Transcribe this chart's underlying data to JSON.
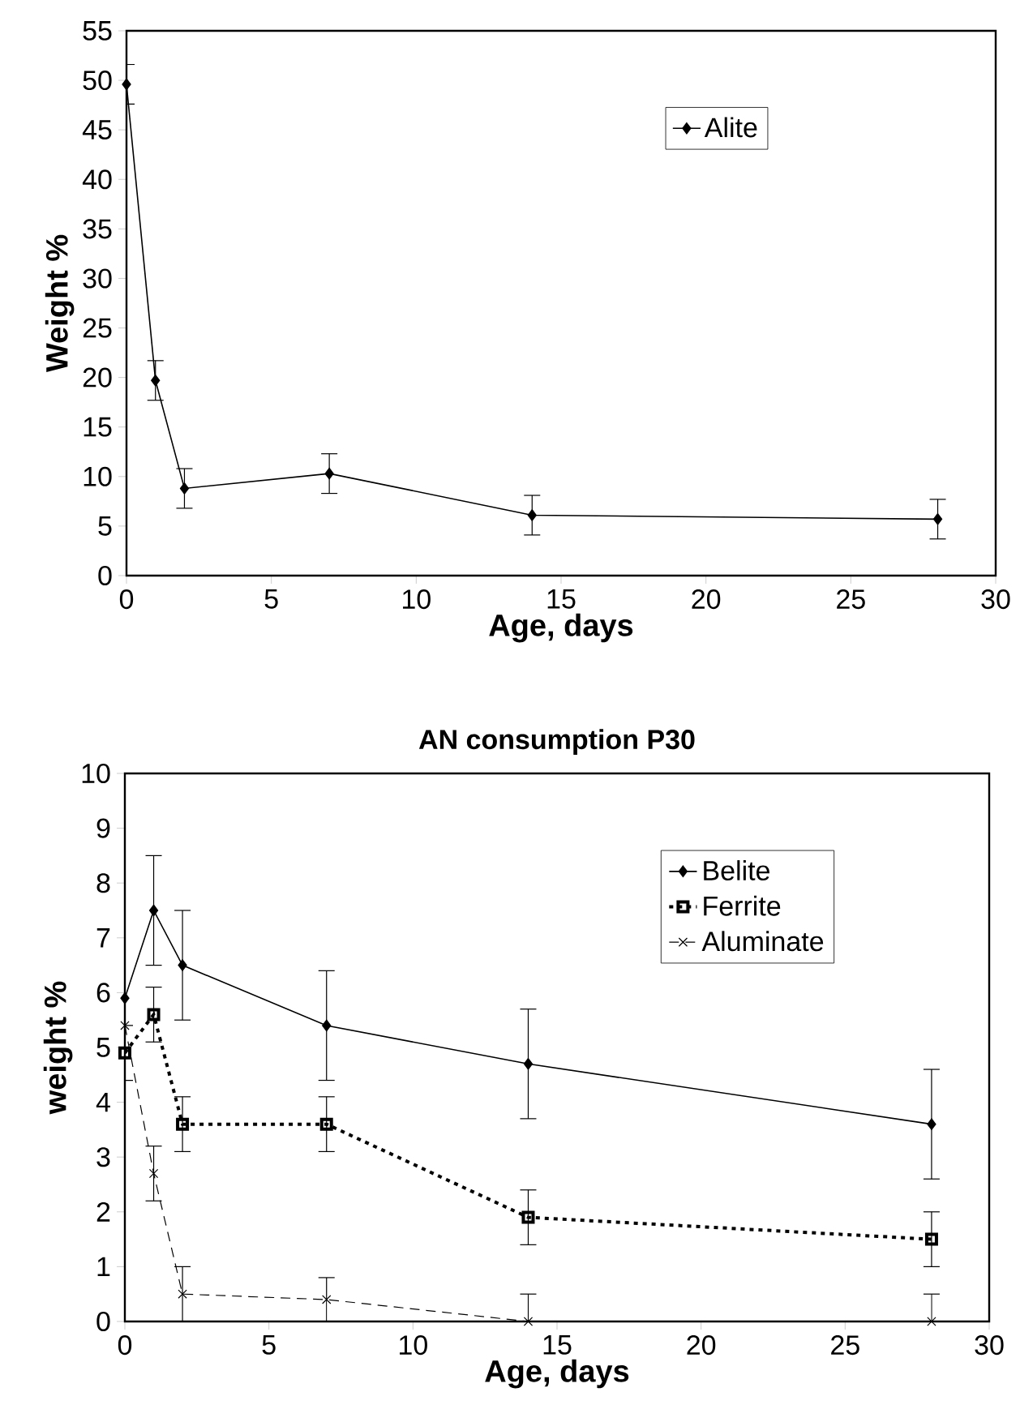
{
  "chart_data": [
    {
      "type": "line",
      "xlabel": "Age, days",
      "ylabel": "Weight %",
      "x": [
        0,
        1,
        2,
        7,
        14,
        28
      ],
      "xlim": [
        0,
        30
      ],
      "xticks": [
        0,
        5,
        10,
        15,
        20,
        25,
        30
      ],
      "ylim": [
        0,
        55
      ],
      "yticks": [
        0,
        5,
        10,
        15,
        20,
        25,
        30,
        35,
        40,
        45,
        50,
        55
      ],
      "legend": "top right",
      "grid": false,
      "series": [
        {
          "name": "Alite",
          "color": "#000000",
          "marker": "diamond",
          "line_style": "solid",
          "values": [
            49.6,
            19.7,
            8.8,
            10.3,
            6.1,
            5.7
          ],
          "errors": [
            2,
            2,
            2,
            2,
            2,
            2
          ]
        }
      ]
    },
    {
      "type": "line",
      "title": "AN consumption P30",
      "xlabel": "Age, days",
      "ylabel": "weight %",
      "x": [
        0,
        1,
        2,
        7,
        14,
        28
      ],
      "xlim": [
        0,
        30
      ],
      "xticks": [
        0,
        5,
        10,
        15,
        20,
        25,
        30
      ],
      "ylim": [
        0,
        10
      ],
      "yticks": [
        0,
        1,
        2,
        3,
        4,
        5,
        6,
        7,
        8,
        9,
        10
      ],
      "legend": "top right",
      "grid": false,
      "series": [
        {
          "name": "Belite",
          "color": "#000000",
          "marker": "diamond",
          "line_style": "solid",
          "values": [
            5.9,
            7.5,
            6.5,
            5.4,
            4.7,
            3.6
          ],
          "errors": [
            null,
            1,
            1,
            1,
            1,
            1
          ]
        },
        {
          "name": "Ferrite",
          "color": "#000000",
          "marker": "square",
          "line_style": "dotted",
          "values": [
            4.9,
            5.6,
            3.6,
            3.6,
            1.9,
            1.5
          ],
          "errors": [
            0.5,
            0.5,
            0.5,
            0.5,
            0.5,
            0.5
          ]
        },
        {
          "name": "Aluminate",
          "color": "#000000",
          "marker": "cross",
          "line_style": "dashed",
          "values": [
            5.4,
            2.7,
            0.5,
            0.4,
            0,
            0
          ],
          "errors": [
            null,
            0.5,
            0.5,
            0.4,
            [
              0,
              0.5
            ],
            [
              0,
              0.5
            ]
          ]
        }
      ]
    }
  ]
}
